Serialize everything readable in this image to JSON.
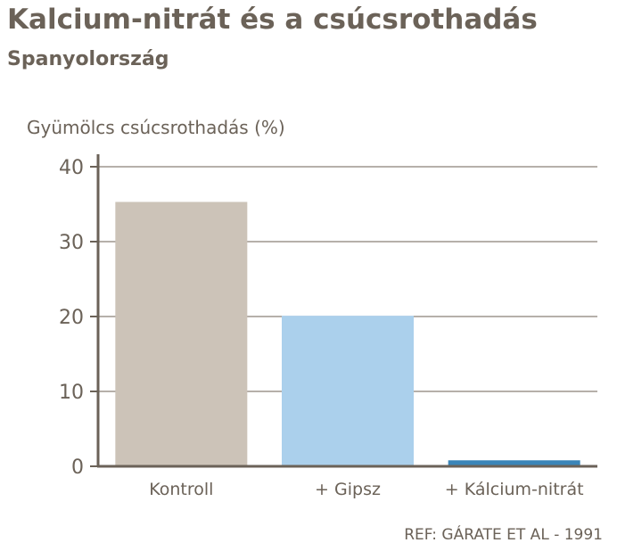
{
  "chart_data": {
    "type": "bar",
    "title": "Kalcium-nitrát és a csúcsrothadás",
    "subtitle": "Spanyolország",
    "ylabel": "Gyümölcs csúcsrothadás (%)",
    "xlabel": "",
    "categories": [
      "Kontroll",
      "+ Gipsz",
      "+ Kálcium-nitrát"
    ],
    "values": [
      35.3,
      20.1,
      0.8
    ],
    "ylim": [
      0,
      40
    ],
    "yticks": [
      0,
      10,
      20,
      30,
      40
    ],
    "grid": true,
    "colors": [
      "#ccc3b8",
      "#abd0ec",
      "#3a85b8"
    ],
    "reference": "REF: GÁRATE ET AL - 1991"
  }
}
